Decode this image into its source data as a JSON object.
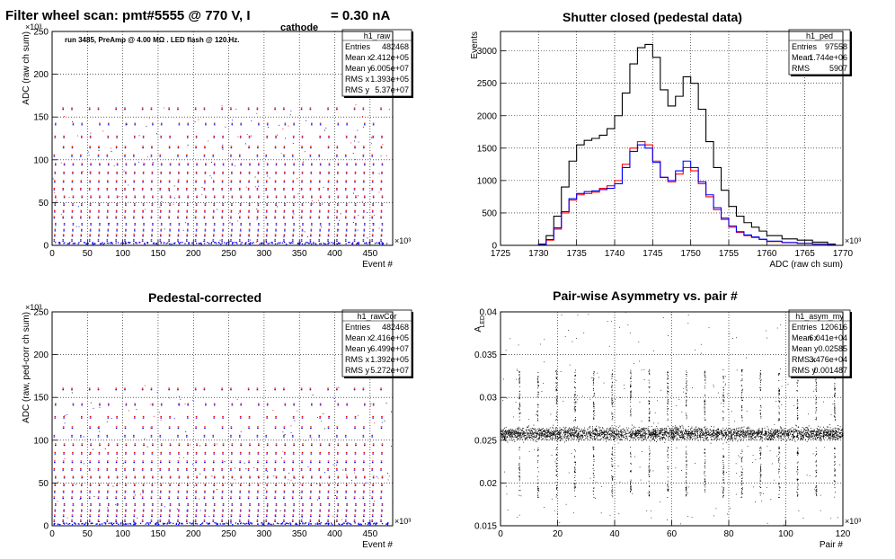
{
  "canvas_title": {
    "main": "Filter wheel scan: pmt#5555 @   770 V, I",
    "sub": "cathode",
    "tail": "= 0.30 nA"
  },
  "chart_data": [
    {
      "id": "raw",
      "type": "scatter",
      "title": "",
      "xlabel": "Event #",
      "ylabel": "ADC (raw ch sum)",
      "x_exponent": "×10³",
      "y_exponent": "×10³",
      "xlim": [
        0,
        482
      ],
      "ylim": [
        0,
        250
      ],
      "x_ticks": [
        0,
        50,
        100,
        150,
        200,
        250,
        300,
        350,
        400,
        450
      ],
      "y_ticks": [
        0,
        50,
        100,
        150,
        200,
        250
      ],
      "grid": true,
      "annotation": "run 3485, PreAmp @ 4.00 MΩ . LED flash @  120.Hz.",
      "stats": {
        "name": "h1_raw",
        "rows": [
          {
            "label": "Entries",
            "value": "482468"
          },
          {
            "label": "Mean x",
            "value": "2.412e+05"
          },
          {
            "label": "Mean y",
            "value": "6.005e+07"
          },
          {
            "label": "RMS x",
            "value": "1.393e+05"
          },
          {
            "label": "RMS y",
            "value": "5.37e+07"
          }
        ]
      },
      "levels": [
        0,
        6,
        12,
        18,
        25,
        33,
        40,
        48,
        57,
        66,
        75,
        85,
        95,
        105,
        115,
        127,
        142,
        160
      ],
      "period": 12.5,
      "colors": {
        "series_a": "#ff0000",
        "series_b": "#0000ff",
        "series_c": "#000000"
      }
    },
    {
      "id": "ped",
      "type": "line",
      "title": "Shutter closed (pedestal data)",
      "xlabel": "ADC (raw ch sum)",
      "ylabel": "Events",
      "x_exponent": "×10³",
      "xlim": [
        1725,
        1770
      ],
      "ylim": [
        0,
        3300
      ],
      "x_ticks": [
        1725,
        1730,
        1735,
        1740,
        1745,
        1750,
        1755,
        1760,
        1765,
        1770
      ],
      "y_ticks": [
        0,
        500,
        1000,
        1500,
        2000,
        2500,
        3000
      ],
      "grid": true,
      "stats": {
        "name": "h1_ped",
        "rows": [
          {
            "label": "Entries",
            "value": "97558"
          },
          {
            "label": "Mean",
            "value": "1.744e+06"
          },
          {
            "label": "RMS",
            "value": "5907"
          }
        ]
      },
      "x": [
        1730,
        1731,
        1732,
        1733,
        1734,
        1735,
        1736,
        1737,
        1738,
        1739,
        1740,
        1741,
        1742,
        1743,
        1744,
        1745,
        1746,
        1747,
        1748,
        1749,
        1750,
        1751,
        1752,
        1753,
        1754,
        1755,
        1756,
        1757,
        1758,
        1759,
        1760,
        1762,
        1764,
        1766,
        1768
      ],
      "series": [
        {
          "color": "#000000",
          "values": [
            20,
            150,
            450,
            900,
            1300,
            1550,
            1620,
            1650,
            1700,
            1800,
            2000,
            2350,
            2800,
            3050,
            3100,
            2900,
            2400,
            2150,
            2300,
            2600,
            2500,
            2100,
            1600,
            1200,
            850,
            600,
            450,
            350,
            280,
            220,
            150,
            100,
            80,
            50,
            20
          ]
        },
        {
          "color": "#ff0000",
          "values": [
            10,
            80,
            250,
            500,
            700,
            780,
            800,
            820,
            880,
            920,
            1000,
            1250,
            1500,
            1600,
            1550,
            1300,
            1050,
            980,
            1100,
            1200,
            1150,
            950,
            750,
            550,
            400,
            280,
            200,
            150,
            120,
            90,
            60,
            40,
            30,
            20,
            10
          ]
        },
        {
          "color": "#0000ff",
          "values": [
            10,
            90,
            270,
            520,
            720,
            800,
            830,
            840,
            860,
            880,
            950,
            1200,
            1450,
            1550,
            1500,
            1280,
            1050,
            1000,
            1150,
            1300,
            1200,
            980,
            780,
            580,
            420,
            300,
            210,
            160,
            130,
            95,
            65,
            45,
            30,
            20,
            10
          ]
        }
      ]
    },
    {
      "id": "rawCor",
      "type": "scatter",
      "title": "Pedestal-corrected",
      "xlabel": "Event #",
      "ylabel": "ADC (raw, ped-corr ch sum)",
      "x_exponent": "×10³",
      "y_exponent": "×10³",
      "xlim": [
        0,
        482
      ],
      "ylim": [
        0,
        250
      ],
      "x_ticks": [
        0,
        50,
        100,
        150,
        200,
        250,
        300,
        350,
        400,
        450
      ],
      "y_ticks": [
        0,
        50,
        100,
        150,
        200,
        250
      ],
      "grid": true,
      "stats": {
        "name": "h1_rawCor",
        "rows": [
          {
            "label": "Entries",
            "value": "482468"
          },
          {
            "label": "Mean x",
            "value": "2.416e+05"
          },
          {
            "label": "Mean y",
            "value": "6.499e+07"
          },
          {
            "label": "RMS x",
            "value": "1.392e+05"
          },
          {
            "label": "RMS y",
            "value": "5.272e+07"
          }
        ]
      },
      "levels": [
        0,
        6,
        12,
        18,
        25,
        33,
        40,
        48,
        57,
        66,
        75,
        85,
        95,
        105,
        115,
        127,
        142,
        160
      ],
      "period": 12.5,
      "colors": {
        "series_a": "#ff0000",
        "series_b": "#0000ff",
        "series_c": "#000000"
      }
    },
    {
      "id": "asym",
      "type": "scatter",
      "title": "Pair-wise Asymmetry vs. pair #",
      "xlabel": "Pair #",
      "ylabel": "A",
      "ylabel_sub": "LED",
      "x_exponent": "×10³",
      "xlim": [
        0,
        120
      ],
      "ylim": [
        0.015,
        0.04
      ],
      "x_ticks": [
        0,
        20,
        40,
        60,
        80,
        100,
        120
      ],
      "y_ticks": [
        0.015,
        0.02,
        0.025,
        0.03,
        0.035,
        0.04
      ],
      "grid": true,
      "stats": {
        "name": "h1_asym_my",
        "rows": [
          {
            "label": "Entries",
            "value": "120616"
          },
          {
            "label": "Mean x",
            "value": "6.041e+04"
          },
          {
            "label": "Mean y",
            "value": "0.02585"
          },
          {
            "label": "RMS x",
            "value": "3.476e+04"
          },
          {
            "label": "RMS y",
            "value": "0.001487"
          }
        ]
      },
      "band_center": 0.0258,
      "band_halfwidth": 0.0009,
      "spike_positions": [
        6.5,
        13,
        19.5,
        26,
        32.5,
        39,
        45.5,
        52,
        58.5,
        65,
        71.5,
        78,
        84.5,
        91,
        97.5,
        104,
        110.5,
        117
      ],
      "colors": {
        "points": "#000000"
      }
    }
  ]
}
